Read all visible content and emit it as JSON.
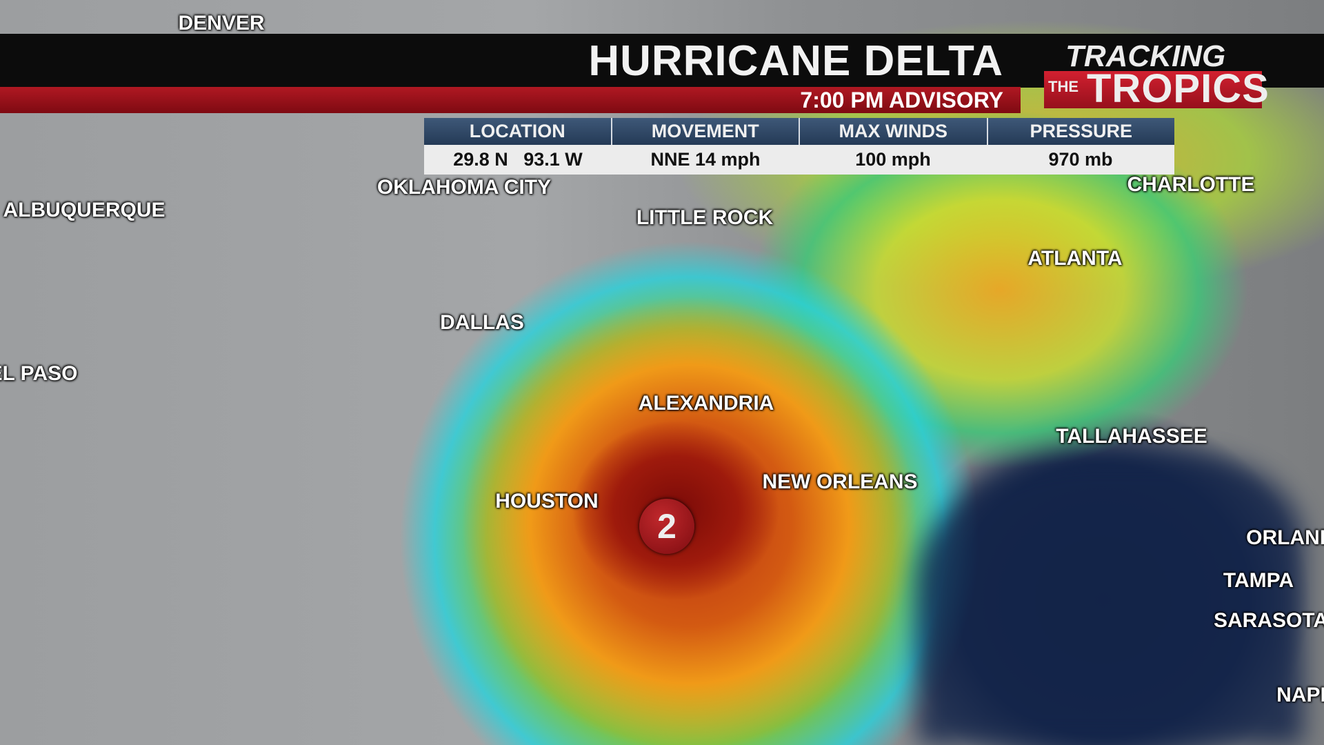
{
  "header": {
    "title": "HURRICANE DELTA",
    "advisory": "7:00 PM ADVISORY"
  },
  "logo": {
    "line1": "TRACKING",
    "the": "THE",
    "line2": "TROPICS"
  },
  "info_table": {
    "headers": [
      "LOCATION",
      "MOVEMENT",
      "MAX WINDS",
      "PRESSURE"
    ],
    "values": [
      "29.8 N   93.1 W",
      "NNE 14 mph",
      "100 mph",
      "970 mb"
    ]
  },
  "storm": {
    "category": "2",
    "color": "#a8181c"
  },
  "cities": [
    "DENVER",
    "OKLAHOMA CITY",
    "ALBUQUERQUE",
    "LITTLE ROCK",
    "CHARLOTTE",
    "ATLANTA",
    "DALLAS",
    "EL PASO",
    "ALEXANDRIA",
    "TALLAHASSEE",
    "NEW ORLEANS",
    "HOUSTON",
    "ORLANDO",
    "TAMPA",
    "SARASOTA",
    "NAPLES"
  ],
  "colors": {
    "banner_red": "#b01822",
    "table_header": "#2f4866",
    "gulf": "#14254a"
  }
}
